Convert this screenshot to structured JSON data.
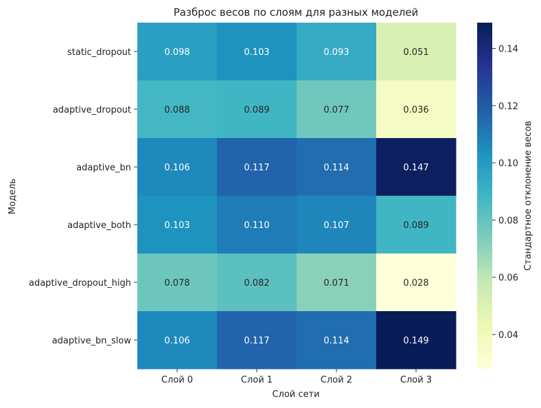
{
  "chart_data": {
    "type": "heatmap",
    "title": "Разброс весов по слоям для разных моделей",
    "xlabel": "Слой сети",
    "ylabel": "Модель",
    "columns": [
      "Слой 0",
      "Слой 1",
      "Слой 2",
      "Слой 3"
    ],
    "rows": [
      "static_dropout",
      "adaptive_dropout",
      "adaptive_bn",
      "adaptive_both",
      "adaptive_dropout_high",
      "adaptive_bn_slow"
    ],
    "values": [
      [
        0.098,
        0.103,
        0.093,
        0.051
      ],
      [
        0.088,
        0.089,
        0.077,
        0.036
      ],
      [
        0.106,
        0.117,
        0.114,
        0.147
      ],
      [
        0.103,
        0.11,
        0.107,
        0.089
      ],
      [
        0.078,
        0.082,
        0.071,
        0.028
      ],
      [
        0.106,
        0.117,
        0.114,
        0.149
      ]
    ],
    "colorbar": {
      "label": "Стандартное отклонение весов",
      "range": [
        0.028,
        0.149
      ],
      "ticks": [
        "0.04",
        "0.06",
        "0.08",
        "0.10",
        "0.12",
        "0.14"
      ],
      "colormap": "YlGnBu"
    }
  }
}
